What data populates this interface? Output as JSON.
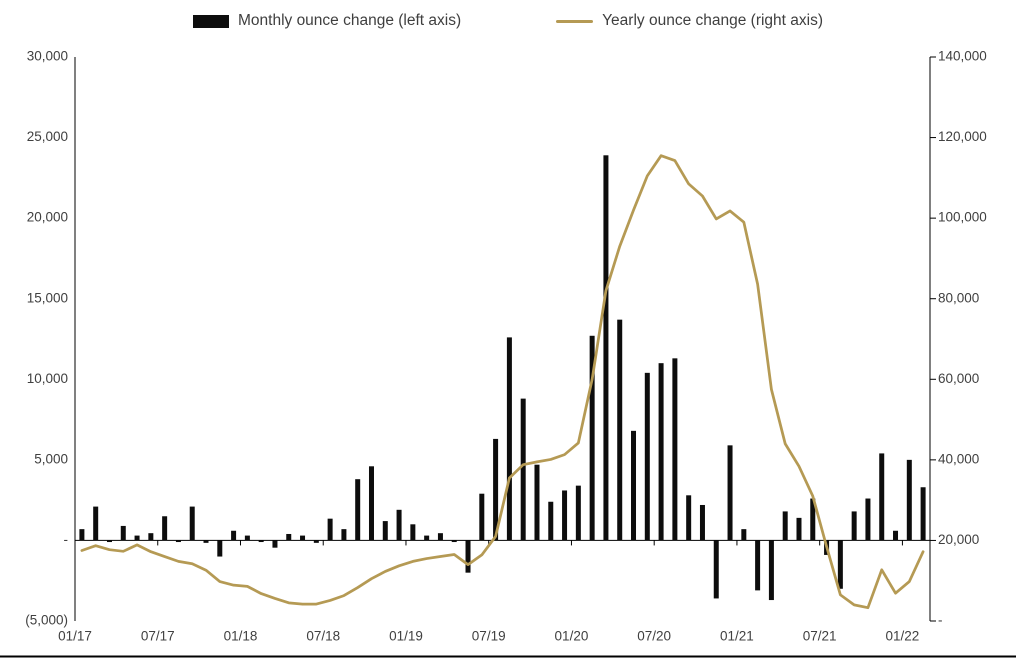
{
  "legend": {
    "monthly_label": "Monthly ounce change (left axis)",
    "yearly_label": "Yearly ounce change (right axis)"
  },
  "colors": {
    "bar": "#0d0d0d",
    "line": "#b59a54",
    "axis": "#000000",
    "tick_label": "#404040",
    "legend_text": "#3f3f3f",
    "bottom_border": "#000000"
  },
  "chart_data": {
    "type": "bar",
    "title": "",
    "xlabel": "",
    "ylabel": "",
    "grid": false,
    "legend_position": "top-center",
    "categories": [
      "01/17",
      "02/17",
      "03/17",
      "04/17",
      "05/17",
      "06/17",
      "07/17",
      "08/17",
      "09/17",
      "10/17",
      "11/17",
      "12/17",
      "01/18",
      "02/18",
      "03/18",
      "04/18",
      "05/18",
      "06/18",
      "07/18",
      "08/18",
      "09/18",
      "10/18",
      "11/18",
      "12/18",
      "01/19",
      "02/19",
      "03/19",
      "04/19",
      "05/19",
      "06/19",
      "07/19",
      "08/19",
      "09/19",
      "10/19",
      "11/19",
      "12/19",
      "01/20",
      "02/20",
      "03/20",
      "04/20",
      "05/20",
      "06/20",
      "07/20",
      "08/20",
      "09/20",
      "10/20",
      "11/20",
      "12/20",
      "01/21",
      "02/21",
      "03/21",
      "04/21",
      "05/21",
      "06/21",
      "07/21",
      "08/21",
      "09/21",
      "10/21",
      "11/21",
      "12/21",
      "01/22",
      "02/22"
    ],
    "series": [
      {
        "name": "Monthly ounce change (left axis)",
        "type": "bar",
        "axis": "left",
        "values": [
          700,
          2100,
          -100,
          900,
          300,
          450,
          1500,
          -100,
          2100,
          -150,
          -1000,
          600,
          300,
          -100,
          -450,
          400,
          300,
          -150,
          1350,
          700,
          3800,
          4600,
          1200,
          1900,
          1000,
          300,
          450,
          -100,
          -2000,
          2900,
          6300,
          12600,
          8800,
          4700,
          2400,
          3100,
          3400,
          12700,
          23900,
          13700,
          6800,
          10400,
          11000,
          11300,
          2800,
          2200,
          -3600,
          5900,
          700,
          -3100,
          -3700,
          1800,
          1400,
          2600,
          -900,
          -3000,
          1800,
          2600,
          5400,
          600,
          5000,
          3300
        ]
      },
      {
        "name": "Yearly ounce change (right axis)",
        "type": "line",
        "axis": "right",
        "values": [
          17500,
          18700,
          17700,
          17300,
          18900,
          17200,
          16000,
          14800,
          14200,
          12600,
          9800,
          8900,
          8600,
          6800,
          5600,
          4500,
          4200,
          4200,
          5100,
          6300,
          8300,
          10500,
          12300,
          13700,
          14800,
          15500,
          16000,
          16500,
          14000,
          16400,
          21000,
          35500,
          38800,
          39500,
          40100,
          41300,
          44200,
          60000,
          82000,
          93000,
          102000,
          110500,
          115500,
          114300,
          108500,
          105500,
          99800,
          101800,
          99000,
          83600,
          57500,
          44000,
          38400,
          31000,
          18500,
          6500,
          4000,
          3300,
          12700,
          6900,
          9800,
          17200
        ]
      }
    ],
    "left_axis": {
      "min": -5000,
      "max": 30000,
      "tick_values": [
        30000,
        25000,
        20000,
        15000,
        10000,
        5000,
        0,
        -5000
      ],
      "tick_labels": [
        "30,000",
        "25,000",
        "20,000",
        "15,000",
        "10,000",
        "5,000",
        "-",
        "(5,000)"
      ]
    },
    "right_axis": {
      "min": 0,
      "max": 140000,
      "tick_values": [
        140000,
        120000,
        100000,
        80000,
        60000,
        40000,
        20000,
        0
      ],
      "tick_labels": [
        "140,000",
        "120,000",
        "100,000",
        "80,000",
        "60,000",
        "40,000",
        "20,000",
        "-"
      ]
    },
    "x_axis": {
      "tick_labels": [
        "01/17",
        "07/17",
        "01/18",
        "07/18",
        "01/19",
        "07/19",
        "01/20",
        "07/20",
        "01/21",
        "07/21",
        "01/22"
      ],
      "tick_interval_months": 6
    }
  }
}
